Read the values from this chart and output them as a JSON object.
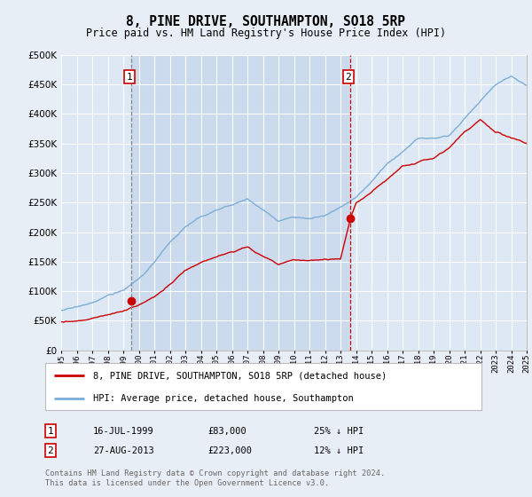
{
  "title": "8, PINE DRIVE, SOUTHAMPTON, SO18 5RP",
  "subtitle": "Price paid vs. HM Land Registry's House Price Index (HPI)",
  "hpi_color": "#7aaed6",
  "price_color": "#cc0000",
  "background_color": "#e8eef5",
  "plot_bg_color": "#dde8f4",
  "shade_color": "#c8d8ec",
  "grid_color": "#ffffff",
  "ylim": [
    0,
    500000
  ],
  "yticks": [
    0,
    50000,
    100000,
    150000,
    200000,
    250000,
    300000,
    350000,
    400000,
    450000,
    500000
  ],
  "annotation1": {
    "label": "1",
    "date_str": "16-JUL-1999",
    "price": 83000,
    "note": "25% ↓ HPI",
    "x_year": 1999.54
  },
  "annotation2": {
    "label": "2",
    "date_str": "27-AUG-2013",
    "price": 223000,
    "note": "12% ↓ HPI",
    "x_year": 2013.65
  },
  "legend_line1": "8, PINE DRIVE, SOUTHAMPTON, SO18 5RP (detached house)",
  "legend_line2": "HPI: Average price, detached house, Southampton",
  "footer": "Contains HM Land Registry data © Crown copyright and database right 2024.\nThis data is licensed under the Open Government Licence v3.0.",
  "xmin": 1995,
  "xmax": 2025,
  "hpi_key_years": [
    1995,
    1996,
    1997,
    1998,
    1999,
    2000,
    2001,
    2002,
    2003,
    2004,
    2005,
    2006,
    2007,
    2008,
    2009,
    2010,
    2011,
    2012,
    2013,
    2014,
    2015,
    2016,
    2017,
    2018,
    2019,
    2020,
    2021,
    2022,
    2023,
    2024,
    2025
  ],
  "hpi_key_vals": [
    68000,
    72000,
    80000,
    92000,
    100000,
    120000,
    148000,
    180000,
    205000,
    220000,
    232000,
    240000,
    252000,
    232000,
    212000,
    220000,
    218000,
    222000,
    236000,
    252000,
    278000,
    308000,
    330000,
    352000,
    356000,
    362000,
    390000,
    420000,
    448000,
    462000,
    448000
  ],
  "price_key_years": [
    1995,
    1996,
    1997,
    1998,
    1999,
    2000,
    2001,
    2002,
    2003,
    2004,
    2005,
    2006,
    2007,
    2008,
    2009,
    2010,
    2011,
    2012,
    2013,
    2013.65,
    2014,
    2015,
    2016,
    2017,
    2018,
    2019,
    2020,
    2021,
    2022,
    2023,
    2024,
    2025
  ],
  "price_key_vals": [
    48000,
    51000,
    55000,
    60000,
    67000,
    76000,
    92000,
    112000,
    134000,
    148000,
    158000,
    165000,
    175000,
    160000,
    147000,
    154000,
    150000,
    154000,
    154000,
    223000,
    248000,
    268000,
    288000,
    310000,
    316000,
    322000,
    340000,
    370000,
    390000,
    368000,
    358000,
    350000
  ]
}
